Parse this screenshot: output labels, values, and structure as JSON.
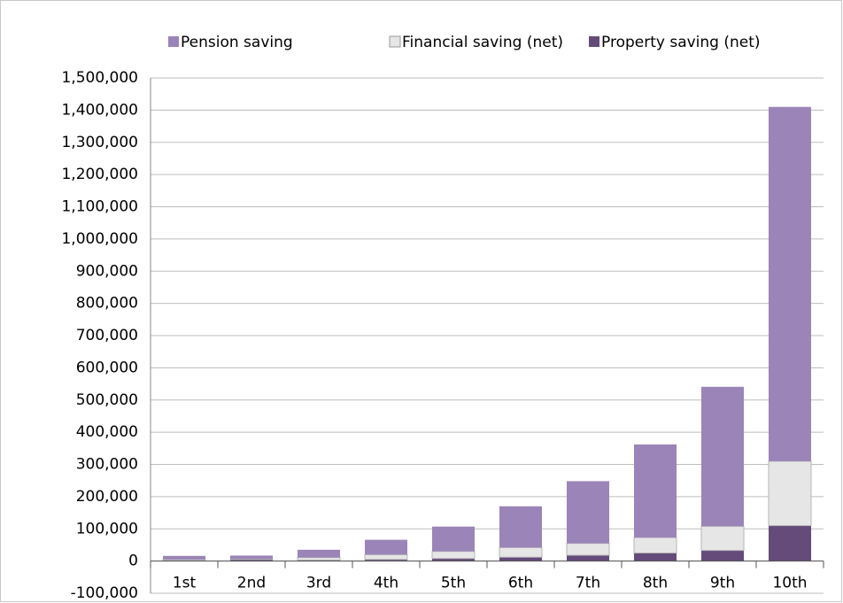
{
  "chart_data": {
    "type": "stacked_bar",
    "categories": [
      "1st",
      "2nd",
      "3rd",
      "4th",
      "5th",
      "6th",
      "7th",
      "8th",
      "9th",
      "10th"
    ],
    "series": [
      {
        "name": "Property saving (net)",
        "color": "#644b7a",
        "values": [
          2000,
          5000,
          3000,
          5000,
          8000,
          12000,
          18000,
          25000,
          33000,
          110000
        ]
      },
      {
        "name": "Financial saving (net)",
        "color": "#e6e6e6",
        "values": [
          3000,
          2000,
          8000,
          15000,
          22000,
          30000,
          37000,
          48000,
          75000,
          200000
        ]
      },
      {
        "name": "Pension saving",
        "color": "#9b84b7",
        "values": [
          11000,
          10000,
          24000,
          46000,
          77000,
          128000,
          193000,
          289000,
          433000,
          1100000
        ]
      }
    ],
    "legend_order": [
      "Pension saving",
      "Financial saving (net)",
      "Property saving (net)"
    ],
    "ylim": [
      -100000,
      1500000
    ],
    "yticks": [
      {
        "value": -100000,
        "label": "-100,000"
      },
      0,
      {
        "value": 100000,
        "label": "100,000"
      },
      {
        "value": 200000,
        "label": "200,000"
      },
      {
        "value": 300000,
        "label": "300,000"
      },
      {
        "value": 400000,
        "label": "400,000"
      },
      {
        "value": 500000,
        "label": "500,000"
      },
      {
        "value": 600000,
        "label": "600,000"
      },
      {
        "value": 700000,
        "label": "700,000"
      },
      {
        "value": 800000,
        "label": "800,000"
      },
      {
        "value": 900000,
        "label": "900,000"
      },
      {
        "value": 1000000,
        "label": "1,000,000"
      },
      {
        "value": 1100000,
        "label": "1,100,000"
      },
      {
        "value": 1200000,
        "label": "1,200,000"
      },
      {
        "value": 1300000,
        "label": "1,300,000"
      },
      {
        "value": 1400000,
        "label": "1,400,000"
      },
      {
        "value": 1500000,
        "label": "1,500,000"
      }
    ],
    "grid": true,
    "legend": "top"
  }
}
